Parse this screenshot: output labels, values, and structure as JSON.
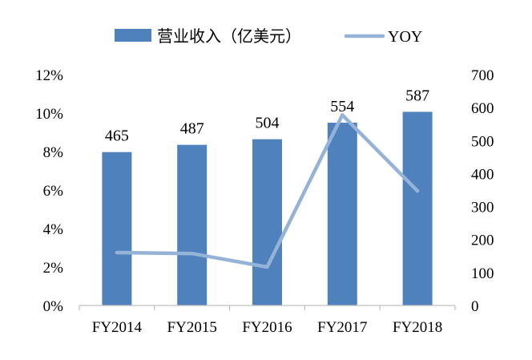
{
  "chart_data": {
    "type": "bar+line",
    "categories": [
      "FY2014",
      "FY2015",
      "FY2016",
      "FY2017",
      "FY2018"
    ],
    "series": [
      {
        "name": "营业收入（亿美元）",
        "type": "bar",
        "axis": "right",
        "values": [
          465,
          487,
          504,
          554,
          587
        ],
        "data_labels": [
          "465",
          "487",
          "504",
          "554",
          "587"
        ],
        "color": "#4F81BD"
      },
      {
        "name": "YOY",
        "type": "line",
        "axis": "left",
        "values": [
          0.0275,
          0.027,
          0.02,
          0.099,
          0.0595
        ],
        "color": "#95B3D7"
      }
    ],
    "left_axis": {
      "ylim": [
        0,
        0.12
      ],
      "ticks": [
        0,
        0.02,
        0.04,
        0.06,
        0.08,
        0.1,
        0.12
      ],
      "tick_labels": [
        "0%",
        "2%",
        "4%",
        "6%",
        "8%",
        "10%",
        "12%"
      ]
    },
    "right_axis": {
      "ylim": [
        0,
        700
      ],
      "ticks": [
        0,
        100,
        200,
        300,
        400,
        500,
        600,
        700
      ],
      "tick_labels": [
        "0",
        "100",
        "200",
        "300",
        "400",
        "500",
        "600",
        "700"
      ]
    },
    "grid": false,
    "legend": {
      "placement": "top-center"
    }
  }
}
